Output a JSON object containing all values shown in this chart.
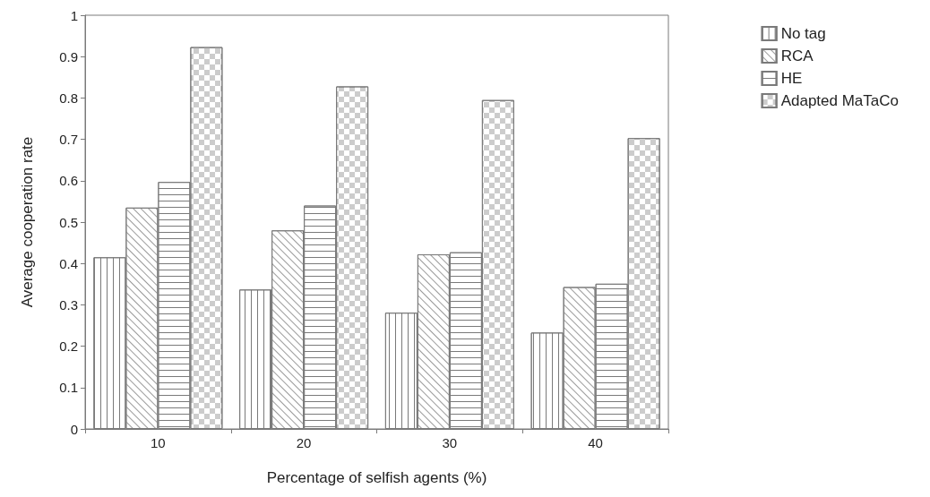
{
  "chart_data": {
    "type": "bar",
    "xlabel": "Percentage of selfish agents (%)",
    "ylabel": "Average cooperation rate",
    "categories": [
      "10",
      "20",
      "30",
      "40"
    ],
    "series": [
      {
        "name": "No tag",
        "color": "#ffffff",
        "values": [
          0.415,
          0.337,
          0.281,
          0.233
        ]
      },
      {
        "name": "RCA",
        "color": "#ffffff",
        "values": [
          0.535,
          0.48,
          0.422,
          0.343
        ]
      },
      {
        "name": "HE",
        "color": "#ffffff",
        "values": [
          0.597,
          0.54,
          0.427,
          0.351
        ]
      },
      {
        "name": "Adapted MaTaCo",
        "color": "#ffffff",
        "values": [
          0.923,
          0.828,
          0.795,
          0.703
        ]
      }
    ],
    "ylim": [
      0,
      1
    ],
    "yticks": [
      0,
      0.1,
      0.2,
      0.3,
      0.4,
      0.5,
      0.6,
      0.7,
      0.8,
      0.9,
      1
    ],
    "grid": false,
    "legend": "top right"
  }
}
